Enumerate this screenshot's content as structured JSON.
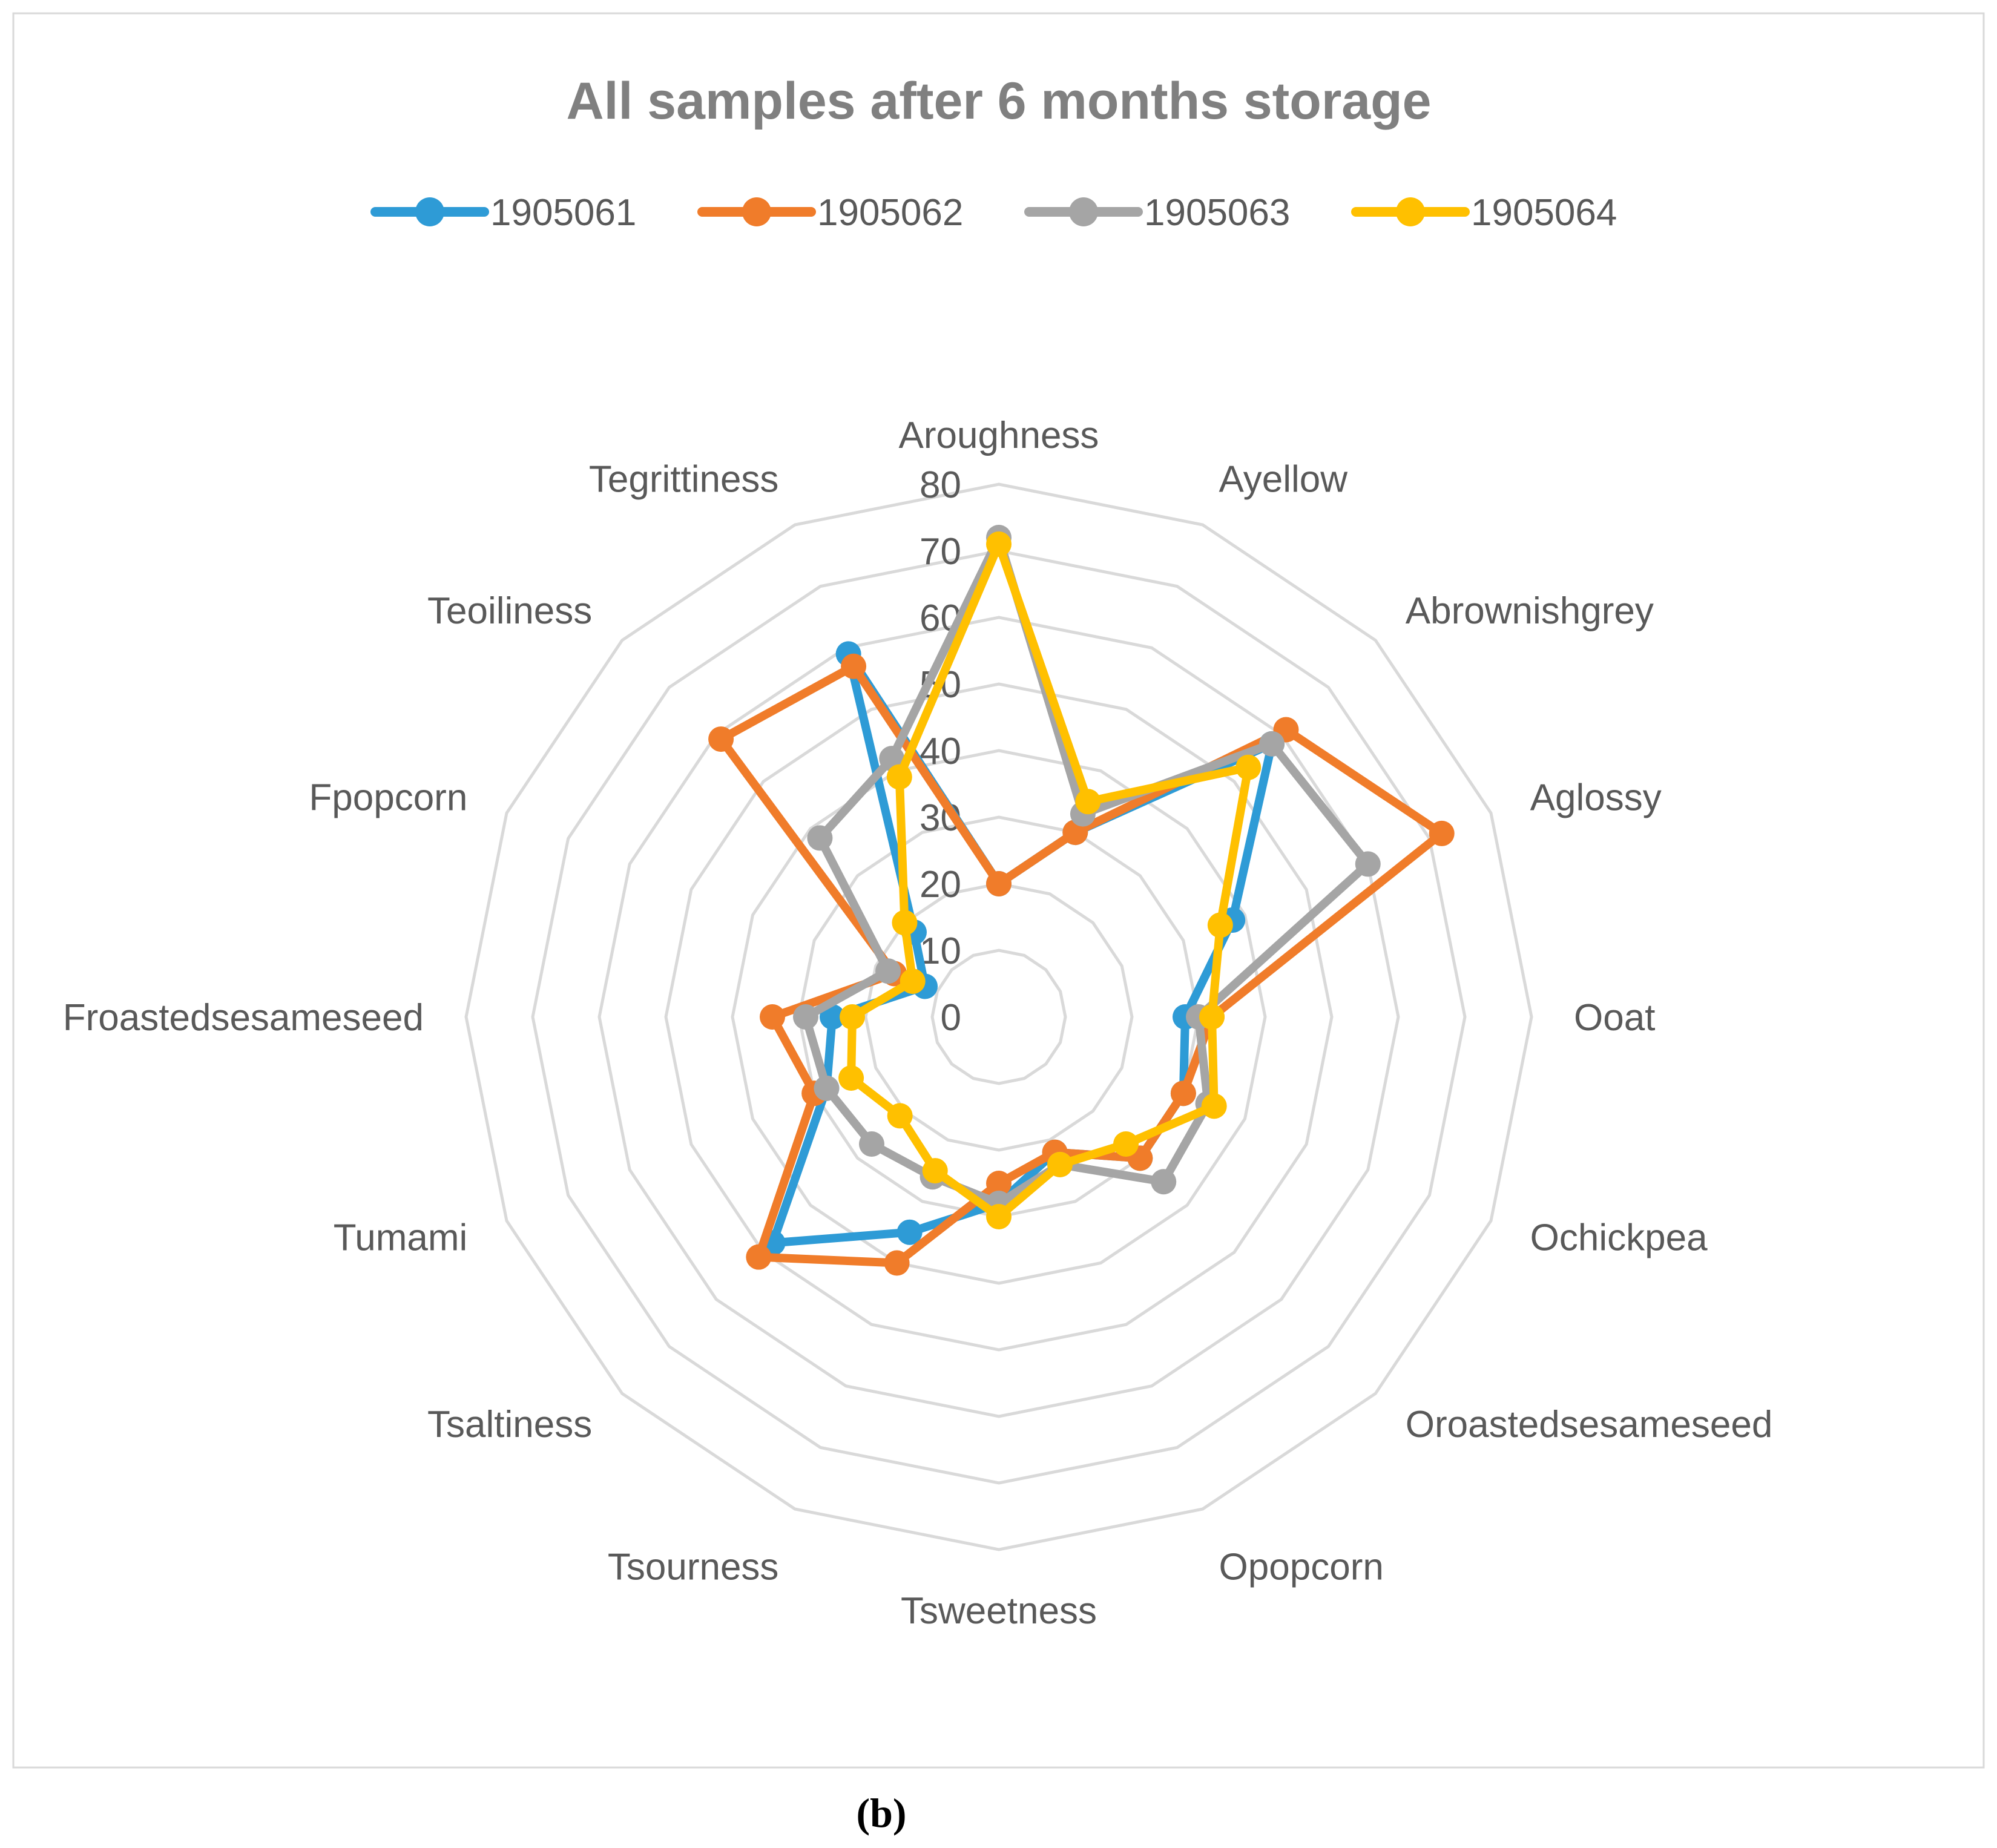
{
  "chart_data": {
    "type": "radar",
    "title": "All samples after 6 months storage",
    "categories": [
      "Aroughness",
      "Ayellow",
      "Abrownishgrey",
      "Aglossy",
      "Ooat",
      "Ochickpea",
      "Oroastedsesameseed",
      "Opopcorn",
      "Tsweetness",
      "Tsourness",
      "Tsaltiness",
      "Tumami",
      "Froastedsesameseed",
      "Fpopcorn",
      "Teoiliness",
      "Tegrittiness"
    ],
    "ticks": [
      0,
      10,
      20,
      30,
      40,
      50,
      60,
      70,
      80
    ],
    "rlim": [
      0,
      80
    ],
    "grid": true,
    "legend_position": "top",
    "series": [
      {
        "name": "1905061",
        "color": "#2E9BD6",
        "values": [
          20,
          30,
          58,
          38,
          28,
          30,
          30,
          22,
          28,
          35,
          48,
          28,
          25,
          12,
          18,
          59
        ]
      },
      {
        "name": "1905062",
        "color": "#F07C2A",
        "values": [
          20,
          30,
          61,
          72,
          32,
          30,
          30,
          22,
          25,
          40,
          51,
          30,
          34,
          17,
          59,
          57
        ]
      },
      {
        "name": "1905063",
        "color": "#A5A5A5",
        "values": [
          72,
          33,
          58,
          60,
          30,
          34,
          35,
          24,
          28,
          26,
          27,
          28,
          29,
          18,
          38,
          42
        ]
      },
      {
        "name": "1905064",
        "color": "#FFC000",
        "values": [
          71,
          35,
          53,
          36,
          32,
          35,
          27,
          24,
          30,
          25,
          21,
          24,
          22,
          14,
          20,
          39
        ]
      }
    ]
  },
  "caption": "(b)"
}
